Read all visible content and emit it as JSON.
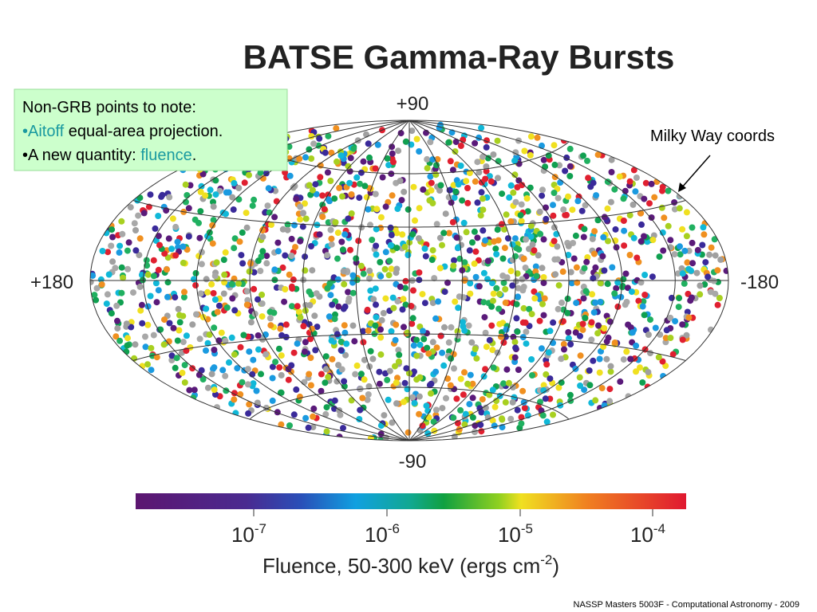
{
  "title": "BATSE Gamma-Ray Bursts",
  "note": {
    "heading": "Non-GRB points to note:",
    "bullet1": {
      "mark": "•",
      "highlight": "Aitoff",
      "rest": " equal-area projection."
    },
    "bullet2": {
      "lead": "•A new quantity: ",
      "highlight": "fluence",
      "end": "."
    }
  },
  "annotation": "Milky Way coords",
  "map_labels": {
    "top": "+90",
    "bottom": "-90",
    "left": "+180",
    "right": "-180"
  },
  "colorbar": {
    "ticks": [
      {
        "base": "10",
        "exponent": "-7"
      },
      {
        "base": "10",
        "exponent": "-6"
      },
      {
        "base": "10",
        "exponent": "-5"
      },
      {
        "base": "10",
        "exponent": "-4"
      }
    ],
    "label": {
      "text": "Fluence, 50-300 keV (ergs cm",
      "exponent": "-2",
      "close": ")"
    }
  },
  "footer": "NASSP Masters 5003F - Computational Astronomy - 2009"
}
